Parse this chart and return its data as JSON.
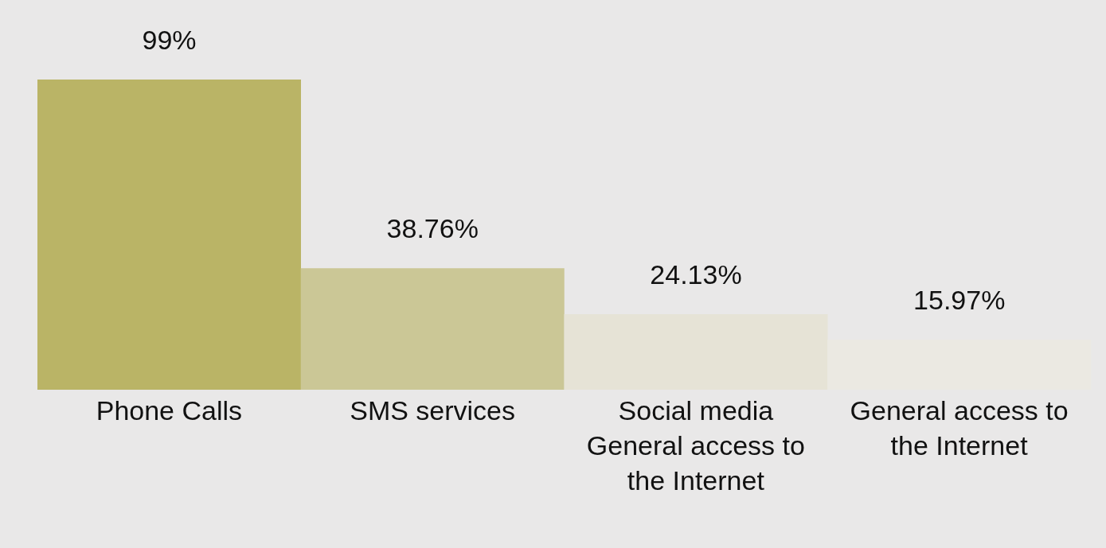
{
  "chart_data": {
    "type": "bar",
    "categories": [
      "Phone Calls",
      "SMS services",
      "Social media General access to the Internet",
      "General access to the Internet"
    ],
    "values": [
      99,
      38.76,
      24.13,
      15.97
    ],
    "value_labels": [
      "99%",
      "38.76%",
      "24.13%",
      "15.97%"
    ],
    "colors": [
      "#bab466",
      "#cbc796",
      "#e6e3d6",
      "#ebe9e2"
    ],
    "grid": false,
    "legend": false
  }
}
